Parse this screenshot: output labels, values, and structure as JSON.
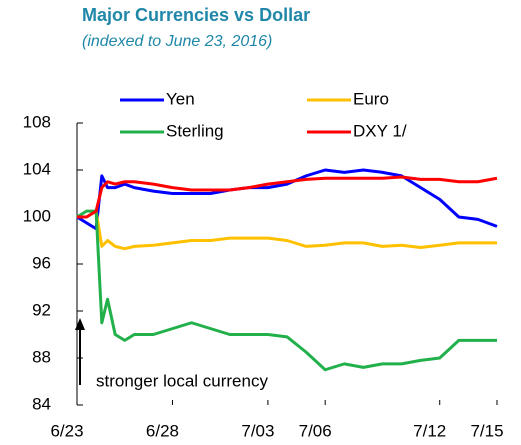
{
  "chart_data": {
    "type": "line",
    "title": "Major  Currencies vs Dollar",
    "subtitle": "(indexed to June 23, 2016)",
    "annotation": "stronger local currency",
    "x": [
      0,
      0.5,
      1,
      1.3,
      1.6,
      2,
      2.5,
      3,
      4,
      5,
      6,
      7,
      8,
      9,
      10,
      11,
      12,
      13,
      14,
      15,
      16,
      17,
      18,
      19,
      20,
      21,
      22
    ],
    "series": [
      {
        "name": "Yen",
        "color": "#0000ff",
        "values": [
          100,
          99.5,
          99,
          103.5,
          102.5,
          102.5,
          102.8,
          102.5,
          102.2,
          102,
          102,
          102,
          102.3,
          102.5,
          102.5,
          102.8,
          103.5,
          104,
          103.8,
          104,
          103.8,
          103.5,
          102.5,
          101.5,
          100,
          99.8,
          99.2
        ]
      },
      {
        "name": "Euro",
        "color": "#ffc000",
        "values": [
          100,
          100,
          100.5,
          97.5,
          98,
          97.5,
          97.3,
          97.5,
          97.6,
          97.8,
          98,
          98,
          98.2,
          98.2,
          98.2,
          98,
          97.5,
          97.6,
          97.8,
          97.8,
          97.5,
          97.6,
          97.4,
          97.6,
          97.8,
          97.8,
          97.8
        ]
      },
      {
        "name": "Sterling",
        "color": "#22b04b",
        "values": [
          100,
          100.5,
          100.5,
          91,
          93,
          90,
          89.5,
          90,
          90,
          90.5,
          91,
          90.5,
          90,
          90,
          90,
          89.8,
          88.5,
          87,
          87.5,
          87.2,
          87.5,
          87.5,
          87.8,
          88,
          89.5,
          89.5,
          89.5
        ]
      },
      {
        "name": "DXY 1/",
        "color": "#ff0000",
        "values": [
          100,
          100,
          100.5,
          102.5,
          103,
          102.8,
          103,
          103,
          102.8,
          102.5,
          102.3,
          102.3,
          102.3,
          102.5,
          102.8,
          103,
          103.2,
          103.3,
          103.3,
          103.3,
          103.3,
          103.4,
          103.2,
          103.2,
          103,
          103,
          103.3
        ]
      }
    ],
    "xlim": [
      0,
      22
    ],
    "xticks": [
      {
        "value": 0,
        "label": "6/23"
      },
      {
        "value": 5,
        "label": "6/28"
      },
      {
        "value": 10,
        "label": "7/03"
      },
      {
        "value": 13,
        "label": "7/06"
      },
      {
        "value": 19,
        "label": "7/12"
      },
      {
        "value": 22,
        "label": "7/15"
      }
    ],
    "ylim": [
      84,
      108
    ],
    "yticks": [
      84,
      88,
      92,
      96,
      100,
      104,
      108
    ],
    "grid": false
  }
}
